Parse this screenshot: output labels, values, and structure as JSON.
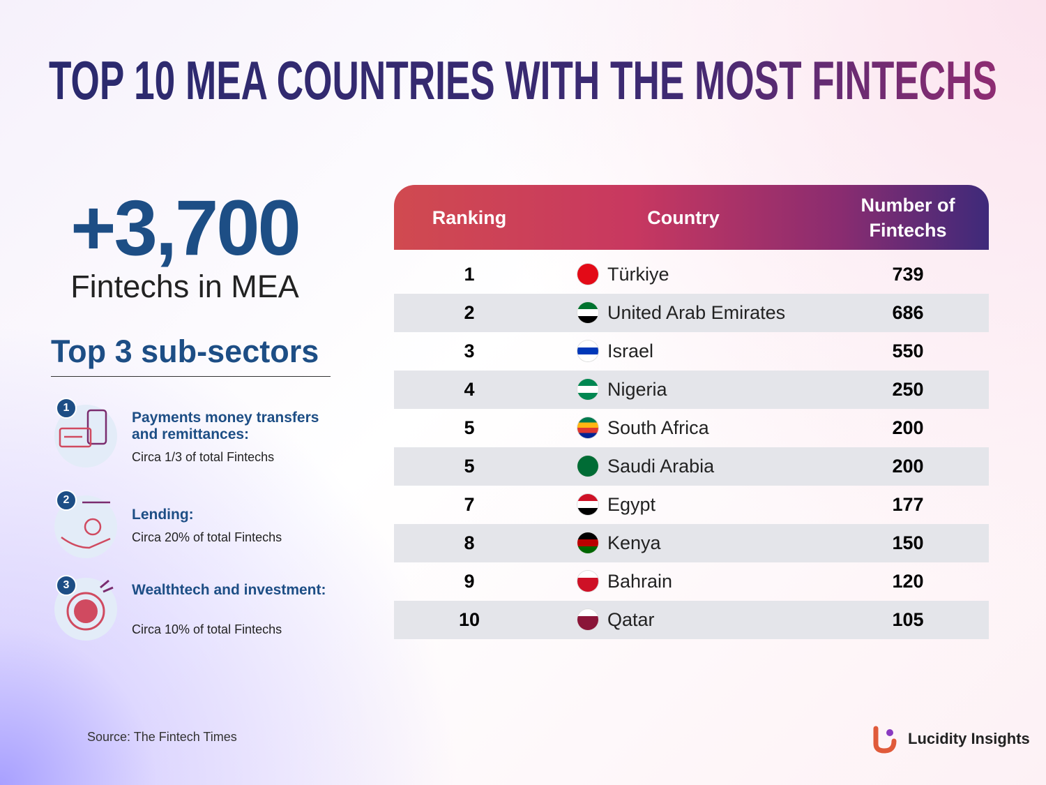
{
  "title": "TOP 10 MEA COUNTRIES WITH THE MOST FINTECHS",
  "highlight": {
    "value": "+3,700",
    "caption": "Fintechs in MEA"
  },
  "subsectors": {
    "heading": "Top 3 sub-sectors",
    "items": [
      {
        "number": "1",
        "title": "Payments money transfers and remittances:",
        "description": "Circa 1/3 of total Fintechs"
      },
      {
        "number": "2",
        "title": "Lending:",
        "description": "Circa 20% of total Fintechs"
      },
      {
        "number": "3",
        "title": "Wealthtech and investment:",
        "description": "Circa 10% of total Fintechs"
      }
    ]
  },
  "table": {
    "header": [
      "Ranking",
      "Country",
      "Number of Fintechs"
    ],
    "rows": [
      [
        1,
        "Türkiye",
        739
      ],
      [
        2,
        "United Arab Emirates",
        686
      ],
      [
        3,
        "Israel",
        550
      ],
      [
        4,
        "Nigeria",
        250
      ],
      [
        5,
        "South Africa",
        200
      ],
      [
        5,
        "Saudi Arabia",
        200
      ],
      [
        7,
        "Egypt",
        177
      ],
      [
        8,
        "Kenya",
        150
      ],
      [
        9,
        "Bahrain",
        120
      ],
      [
        10,
        "Qatar",
        105
      ]
    ]
  },
  "source": "Source: The Fintech Times",
  "brand": "Lucidity Insights"
}
